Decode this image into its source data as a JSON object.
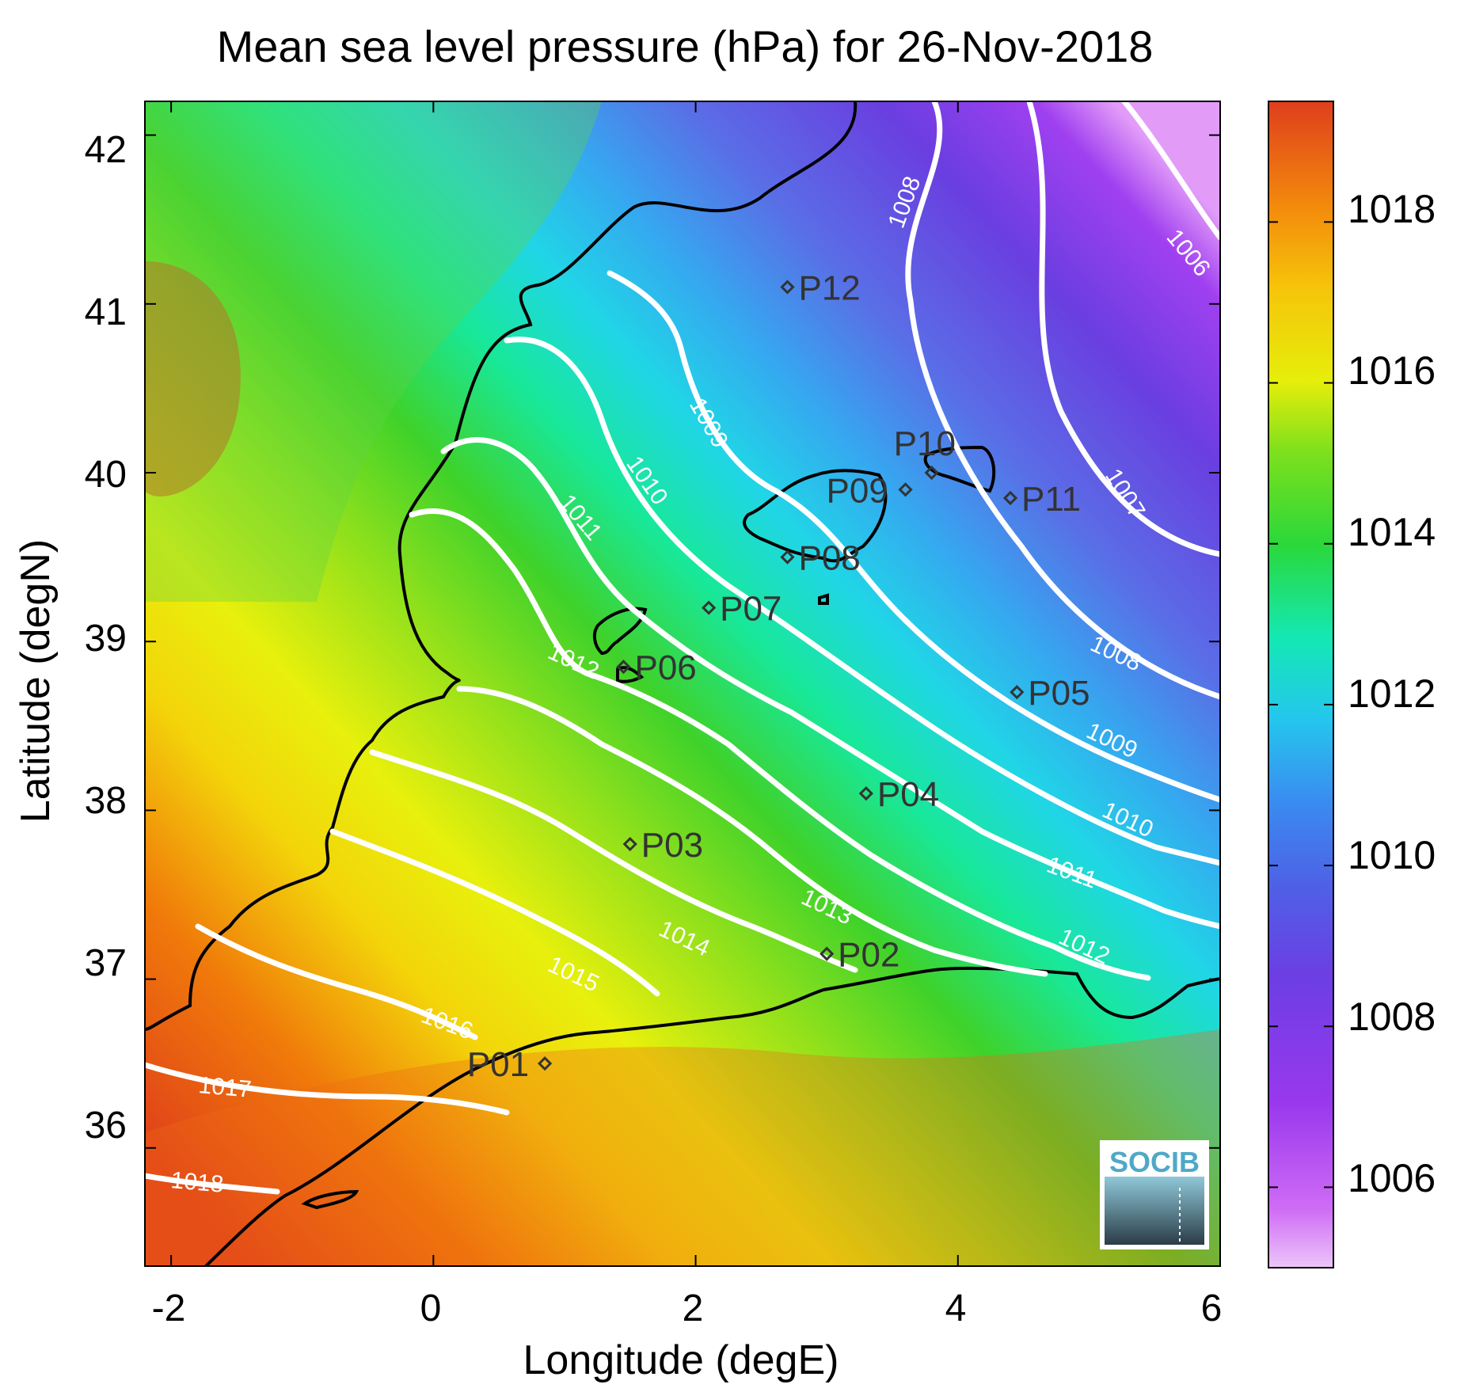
{
  "title": "Mean sea level pressure (hPa) for 26-Nov-2018",
  "xlabel": "Longitude (degE)",
  "ylabel": "Latitude (degN)",
  "x_ticks": [
    "-2",
    "0",
    "2",
    "4",
    "6"
  ],
  "y_ticks": [
    "36",
    "37",
    "38",
    "39",
    "40",
    "41",
    "42"
  ],
  "colorbar": {
    "ticks": [
      "1006",
      "1008",
      "1010",
      "1012",
      "1014",
      "1016",
      "1018"
    ],
    "range": [
      1005,
      1019.5
    ]
  },
  "map": {
    "lon_range": [
      -2.2,
      6.0
    ],
    "lat_range": [
      35.3,
      42.2
    ]
  },
  "contour_levels": [
    {
      "label": "1006"
    },
    {
      "label": "1007"
    },
    {
      "label": "1008"
    },
    {
      "label": "1008"
    },
    {
      "label": "1009"
    },
    {
      "label": "1009"
    },
    {
      "label": "1010"
    },
    {
      "label": "1010"
    },
    {
      "label": "1011"
    },
    {
      "label": "1011"
    },
    {
      "label": "1012"
    },
    {
      "label": "1012"
    },
    {
      "label": "1013"
    },
    {
      "label": "1014"
    },
    {
      "label": "1015"
    },
    {
      "label": "1016"
    },
    {
      "label": "1017"
    },
    {
      "label": "1018"
    }
  ],
  "stations": [
    {
      "name": "P01",
      "lon": 0.85,
      "lat": 36.5
    },
    {
      "name": "P02",
      "lon": 3.0,
      "lat": 37.15
    },
    {
      "name": "P03",
      "lon": 1.5,
      "lat": 37.8
    },
    {
      "name": "P04",
      "lon": 3.3,
      "lat": 38.1
    },
    {
      "name": "P05",
      "lon": 4.45,
      "lat": 38.7
    },
    {
      "name": "P06",
      "lon": 1.45,
      "lat": 38.85
    },
    {
      "name": "P07",
      "lon": 2.1,
      "lat": 39.2
    },
    {
      "name": "P08",
      "lon": 2.7,
      "lat": 39.5
    },
    {
      "name": "P09",
      "lon": 3.6,
      "lat": 39.9
    },
    {
      "name": "P10",
      "lon": 3.8,
      "lat": 40.0
    },
    {
      "name": "P11",
      "lon": 4.4,
      "lat": 39.85
    },
    {
      "name": "P12",
      "lon": 2.7,
      "lat": 41.1
    }
  ],
  "logo": "SOCIB",
  "colors": {
    "contour": "#ffffff",
    "coastline": "#000000",
    "marker": "#333333"
  }
}
